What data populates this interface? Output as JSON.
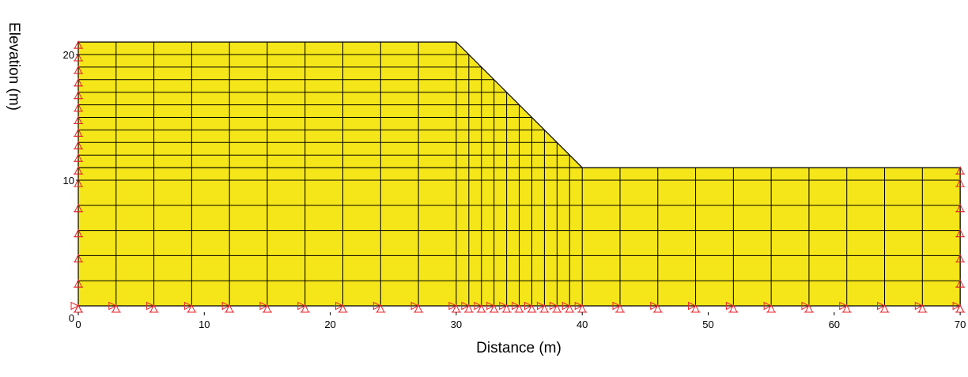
{
  "chart_data": {
    "type": "diagram",
    "xlabel": "Distance (m)",
    "ylabel": "Elevation (m)",
    "xlim": [
      0,
      70
    ],
    "ylim": [
      0,
      21.3
    ],
    "x_ticks": [
      0,
      10,
      20,
      30,
      40,
      50,
      60,
      70
    ],
    "y_ticks": [
      0,
      10,
      20
    ],
    "geometry": {
      "crest_elevation": 21,
      "toe_elevation": 11,
      "crest_x": 30,
      "toe_x": 40,
      "base_elevation": 0
    },
    "mesh": {
      "left_columns_x": [
        0,
        3,
        6,
        9,
        12,
        15,
        18,
        21,
        24,
        27,
        30
      ],
      "slope_columns_x": [
        30,
        31,
        32,
        33,
        34,
        35,
        36,
        37,
        38,
        39,
        40
      ],
      "right_columns_x": [
        40,
        43,
        46,
        49,
        52,
        55,
        58,
        61,
        64,
        67,
        70
      ],
      "lower_rows_y": [
        0,
        2,
        4,
        6,
        8,
        10,
        11
      ],
      "upper_rows_y": [
        11,
        12,
        13,
        14,
        15,
        16,
        17,
        18,
        19,
        20,
        21
      ]
    },
    "colors": {
      "fill": "#f5e619",
      "mesh": "#000000",
      "supports": "#e8222a"
    }
  }
}
